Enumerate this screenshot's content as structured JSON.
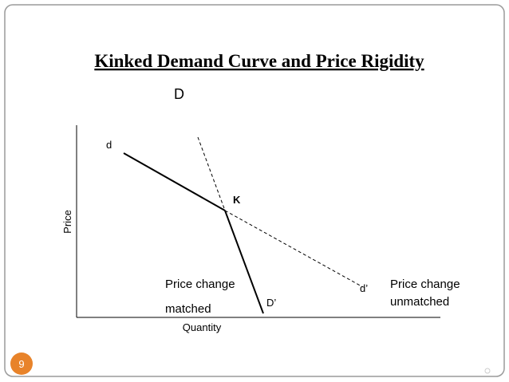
{
  "slide": {
    "title": "Kinked Demand Curve and Price Rigidity",
    "page_number": "9"
  },
  "diagram": {
    "labels": {
      "D": "D",
      "y_axis": "Price",
      "x_axis": "Quantity",
      "d": "d",
      "K": "K",
      "matched_1": "Price change",
      "matched_2": "matched",
      "D_prime": "D’",
      "d_prime": "d’",
      "unmatched_1": "Price change",
      "unmatched_2": "unmatched"
    }
  }
}
